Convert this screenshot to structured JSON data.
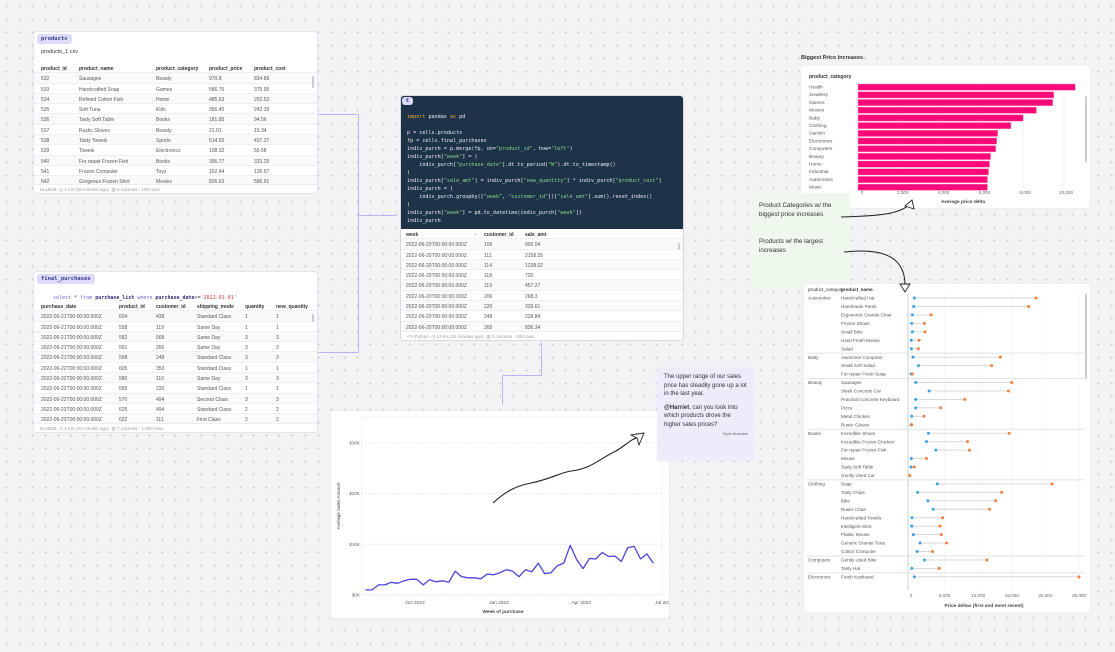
{
  "products": {
    "tag": "products",
    "source": "products_1.csv",
    "columns": [
      "product_id",
      "product_name",
      "product_category",
      "product_price",
      "product_cost"
    ],
    "rows": [
      [
        "532",
        "Sausages",
        "Beauty",
        "970.8",
        "834.89"
      ],
      [
        "533",
        "Handcrafted Soap",
        "Games",
        "586.75",
        "375.95"
      ],
      [
        "534",
        "Refined Cotton Fish",
        "Home",
        "485.63",
        "252.53"
      ],
      [
        "535",
        "Soft Tuna",
        "Kids",
        "356.45",
        "242.39"
      ],
      [
        "536",
        "Tasty Soft Table",
        "Books",
        "181.85",
        "94.56"
      ],
      [
        "537",
        "Rustic Gloves",
        "Beauty",
        "21.01",
        "15.34"
      ],
      [
        "538",
        "Tasty Towels",
        "Sports",
        "514.55",
        "437.37"
      ],
      [
        "539",
        "Towels",
        "Electronics",
        "108.32",
        "59.58"
      ],
      [
        "540",
        "For repair Frozen Fish",
        "Books",
        "396.77",
        "333.29"
      ],
      [
        "541",
        "Frozen Computer",
        "Toys",
        "152.44",
        "135.67"
      ],
      [
        "542",
        "Gorgeous Frozen Shirt",
        "Movies",
        "826.63",
        "586.91"
      ]
    ],
    "footer": {
      "engine": "DuckDB",
      "timing": "1 ms (38 minutes ago)",
      "shape": "5 columns · 100 rows"
    }
  },
  "final_purchases": {
    "tag": "final_purchases",
    "query": {
      "select": "select",
      "star": " * ",
      "from": "from",
      "table": " purchase_list ",
      "where": "where",
      "col": " purchase_date",
      ">=": ">=",
      "value": "'2022-01-01'"
    },
    "columns": [
      "purchase_date",
      "product_id",
      "customer_id",
      "shipping_mode",
      "quantity",
      "new_quantity"
    ],
    "rows": [
      [
        "2022-06-21T00:00:00.000Z",
        "604",
        "438",
        "Standard Class",
        "1",
        "1"
      ],
      [
        "2022-06-21T00:00:00.000Z",
        "558",
        "119",
        "Same Day",
        "1",
        "1"
      ],
      [
        "2022-06-21T00:00:00.000Z",
        "582",
        "568",
        "Same Day",
        "3",
        "3"
      ],
      [
        "2022-06-21T00:00:00.000Z",
        "551",
        "266",
        "Same Day",
        "3",
        "3"
      ],
      [
        "2022-06-21T00:00:00.000Z",
        "598",
        "248",
        "Standard Class",
        "3",
        "3"
      ],
      [
        "2022-06-22T00:00:00.000Z",
        "605",
        "353",
        "Standard Class",
        "1",
        "1"
      ],
      [
        "2022-06-22T00:00:00.000Z",
        "580",
        "116",
        "Same Day",
        "3",
        "3"
      ],
      [
        "2022-06-22T00:00:00.000Z",
        "555",
        "220",
        "Standard Class",
        "1",
        "1"
      ],
      [
        "2022-06-22T00:00:00.000Z",
        "570",
        "494",
        "Second Class",
        "3",
        "3"
      ],
      [
        "2022-06-23T00:00:00.000Z",
        "625",
        "494",
        "Standard Class",
        "2",
        "2"
      ],
      [
        "2022-06-23T00:00:00.000Z",
        "622",
        "111",
        "First Class",
        "2",
        "2"
      ]
    ],
    "footer": {
      "engine": "DuckDB",
      "timing": "1 ms (25 minutes ago)",
      "shape": "7 columns · 1,000 rows"
    }
  },
  "python_cell": {
    "tag": "€",
    "code": [
      "import pandas as pd",
      "",
      "p = cells.products",
      "fp = cells.final_purchases",
      "indiv_purch = p.merge(fp, on=\"product_id\", how=\"left\")",
      "indiv_purch[\"week\"] = (",
      "    indiv_purch[\"purchase_date\"].dt.to_period(\"W\").dt.to_timestamp()",
      ")",
      "indiv_purch[\"sale_amt\"] = indiv_purch[\"new_quantity\"] * indiv_purch[\"product_cost\"]",
      "indiv_purch = (",
      "    indiv_purch.groupby([\"week\", \"customer_id\"])[\"sale_amt\"].sum().reset_index()",
      ")",
      "indiv_purch[\"week\"] = pd.to_datetime(indiv_purch[\"week\"])",
      "indiv_purch"
    ],
    "columns": [
      "week",
      "customer_id",
      "sale_amt"
    ],
    "sort_icon": "↑",
    "rows": [
      [
        "2022-06-20T00:00:00.000Z",
        "100",
        "900.04"
      ],
      [
        "2022-06-20T00:00:00.000Z",
        "111",
        "2158.55"
      ],
      [
        "2022-06-20T00:00:00.000Z",
        "114",
        "1238.02"
      ],
      [
        "2022-06-20T00:00:00.000Z",
        "118",
        "720"
      ],
      [
        "2022-06-20T00:00:00.000Z",
        "119",
        "457.27"
      ],
      [
        "2022-06-20T00:00:00.000Z",
        "206",
        "268.3"
      ],
      [
        "2022-06-20T00:00:00.000Z",
        "220",
        "339.61"
      ],
      [
        "2022-06-20T00:00:00.000Z",
        "248",
        "228.84"
      ],
      [
        "2022-06-20T00:00:00.000Z",
        "265",
        "836.34"
      ]
    ],
    "footer": {
      "engine": "</> Python",
      "timing": "13 ms (25 minutes ago)",
      "shape": "3 columns · 934 rows"
    }
  },
  "notes": {
    "categories": "Product Categories w/ the biggest price increases",
    "products": "Products w/ the largest increases",
    "comment_text": "The upper range of our sales price has steadily gone up a lot in the last year.",
    "mention": "@Harriet",
    "comment_rest": ", can you look into which products drove the higher sales prices?",
    "author": "Taylor Brownlow"
  },
  "colors": {
    "bar": "#ff0a78",
    "line": "#4b45d8",
    "first": "#3aa3e0",
    "recent": "#f07f3c",
    "canvas": "#f3f3f5"
  },
  "chart_data": [
    {
      "type": "bar",
      "title": "Biggest Price Increases",
      "ylabel": "product_category",
      "xlabel": "Average price delta",
      "categories": [
        "Health",
        "Jewelery",
        "Games",
        "Movies",
        "Baby",
        "Clothing",
        "Garden",
        "Electronics",
        "Computers",
        "Beauty",
        "Home",
        "Industrial",
        "Automotive",
        "Music"
      ],
      "values": [
        10550,
        9500,
        9450,
        8650,
        8000,
        7400,
        6750,
        6700,
        6650,
        6400,
        6350,
        6300,
        6250,
        6250
      ],
      "xticks": [
        0,
        2000,
        4000,
        6000,
        8000,
        10000
      ],
      "xtick_labels": [
        "0",
        "2,000",
        "4,000",
        "6,000",
        "8,000",
        "10,000"
      ],
      "xlim": [
        0,
        11000
      ],
      "grid": true
    },
    {
      "type": "line",
      "xlabel": "Week of purchase",
      "ylabel": "Average Sales Amount",
      "x_start": "2022-08-08",
      "x_step": "1 week",
      "values": [
        1000,
        1000,
        2000,
        2000,
        2500,
        2300,
        2800,
        3100,
        3100,
        2000,
        3000,
        2600,
        2800,
        2500,
        4700,
        3600,
        3400,
        3400,
        3200,
        4100,
        4000,
        4400,
        5000,
        4700,
        3600,
        5000,
        4600,
        6300,
        4200,
        4400,
        5800,
        6300,
        9800,
        7000,
        5200,
        7200,
        7100,
        8400,
        7600,
        7700,
        6600,
        9300,
        9600,
        7100,
        8100,
        6300
      ],
      "xticks": [
        "2022-10-01",
        "2023-01-01",
        "2023-04-01",
        "2023-07-01"
      ],
      "xtick_labels": [
        "Oct 2022",
        "Jan 2023",
        "Apr 2023",
        "Jul 2023"
      ],
      "yticks": [
        0,
        10000,
        20000,
        30000
      ],
      "ytick_labels": [
        "$0K",
        "$10K",
        "$20K",
        "$30K"
      ],
      "ylim": [
        0,
        35000
      ],
      "grid": true
    },
    {
      "type": "dumbbell",
      "xlabel": "Price deltas (first and most recent)",
      "columns": [
        "product_category",
        "product_name"
      ],
      "xticks": [
        0,
        5000,
        10000,
        15000,
        20000,
        25000
      ],
      "xtick_labels": [
        "0",
        "5,000",
        "10,000",
        "15,000",
        "20,000",
        "25,000"
      ],
      "xlim": [
        -500,
        25500
      ],
      "groups": [
        {
          "category": "Automotive",
          "items": [
            [
              "Handcrafted Hat",
              500,
              18600
            ],
            [
              "Handmade Pants",
              400,
              17500
            ],
            [
              "Ergonomic Granite Chair",
              200,
              3000
            ],
            [
              "Frozen Shoes",
              100,
              2000
            ],
            [
              "Small Bike",
              200,
              2100
            ],
            [
              "Used Fresh Mouse",
              50,
              1200
            ],
            [
              "Salad",
              50,
              1100
            ]
          ]
        },
        {
          "category": "Baby",
          "items": [
            [
              "Awesome Computer",
              300,
              13300
            ],
            [
              "Small Soft Salad",
              1100,
              12000
            ],
            [
              "For repair Fresh Soap",
              0,
              200
            ]
          ]
        },
        {
          "category": "Beauty",
          "items": [
            [
              "Sausages",
              700,
              15000
            ],
            [
              "Sleek Concrete Car",
              2700,
              14500
            ],
            [
              "Practical Concrete Keyboard",
              700,
              8000
            ],
            [
              "Pizza",
              700,
              4400
            ],
            [
              "Metal Chicken",
              100,
              1900
            ],
            [
              "Rustic Gloves",
              0,
              100
            ]
          ]
        },
        {
          "category": "Books",
          "items": [
            [
              "Incredible Shoes",
              2600,
              14600
            ],
            [
              "Incredible Frozen Chicken",
              2300,
              8400
            ],
            [
              "For repair Frozen Fish",
              3700,
              8700
            ],
            [
              "Mouse",
              50,
              2300
            ],
            [
              "Tasty Soft Table",
              0,
              500
            ],
            [
              "Gently Used Car",
              -200,
              -200
            ]
          ]
        },
        {
          "category": "Clothing",
          "items": [
            [
              "Soap",
              3900,
              21000
            ],
            [
              "Tasty Chips",
              1000,
              13500
            ],
            [
              "Bike",
              2500,
              12600
            ],
            [
              "Rustic Chair",
              3300,
              11700
            ],
            [
              "Handcrafted Towels",
              150,
              4700
            ],
            [
              "Intelligent Shirt",
              100,
              4300
            ],
            [
              "Plastic Mouse",
              350,
              4500
            ],
            [
              "Generic Granite Tuna",
              1350,
              5300
            ],
            [
              "Cotton Computer",
              900,
              3200
            ]
          ]
        },
        {
          "category": "Computers",
          "items": [
            [
              "Gently Used Bike",
              2000,
              11300
            ],
            [
              "Tasty Hat",
              100,
              4200
            ]
          ]
        },
        {
          "category": "Electronics",
          "items": [
            [
              "Fresh Keyboard",
              500,
              25000
            ]
          ]
        }
      ]
    }
  ]
}
